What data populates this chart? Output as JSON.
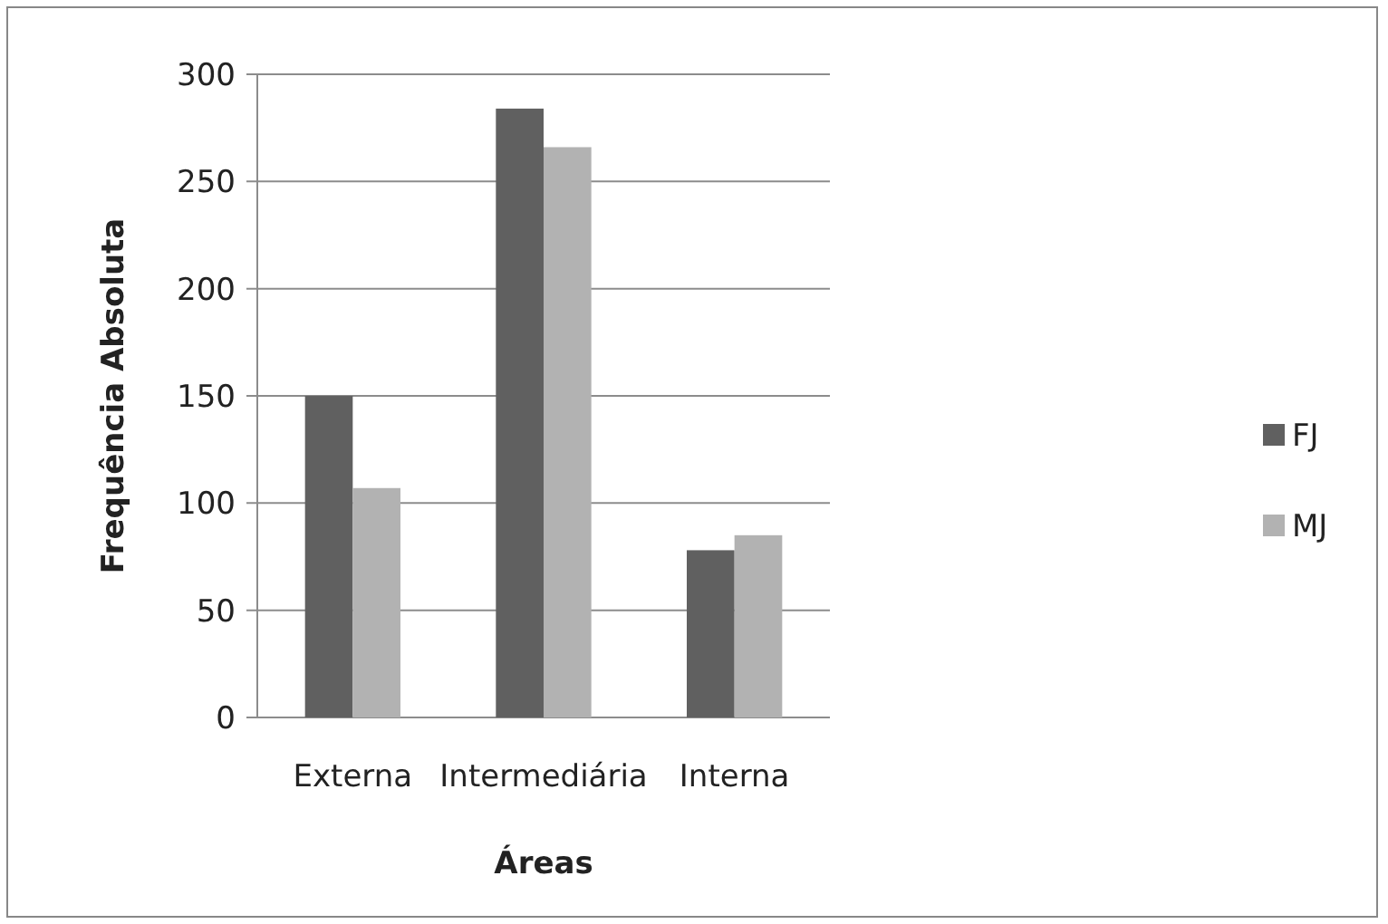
{
  "chart_data": {
    "type": "bar",
    "xlabel": "Áreas",
    "ylabel": "Frequência Absoluta",
    "categories": [
      "Externa",
      "Intermediária",
      "Interna"
    ],
    "series": [
      {
        "name": "FJ",
        "color": "#606060",
        "values": [
          150,
          284,
          78
        ]
      },
      {
        "name": "MJ",
        "color": "#b2b2b2",
        "values": [
          107,
          266,
          85
        ]
      }
    ],
    "ylim": [
      0,
      300
    ],
    "yticks": [
      0,
      50,
      100,
      150,
      200,
      250,
      300
    ],
    "grid": "y",
    "legend": "right"
  }
}
